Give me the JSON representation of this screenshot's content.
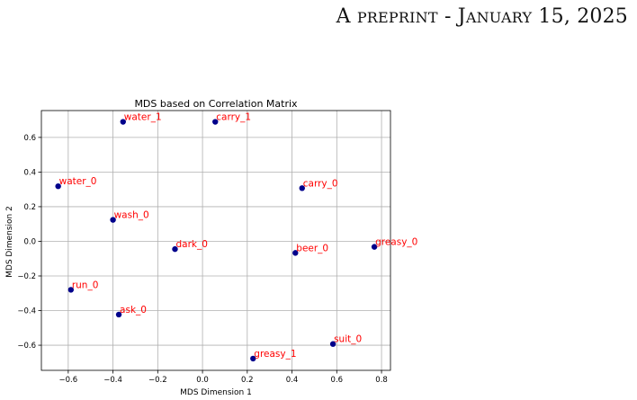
{
  "header": {
    "parts": [
      {
        "text": "A ",
        "cls": "big"
      },
      {
        "text": "PREPRINT",
        "cls": "sc"
      },
      {
        "text": " - ",
        "cls": "big"
      },
      {
        "text": "J",
        "cls": "big"
      },
      {
        "text": "ANUARY",
        "cls": "sc"
      },
      {
        "text": " 15, 2025",
        "cls": "big"
      }
    ]
  },
  "colors": {
    "point": "#00008b",
    "label": "#ff0000",
    "grid": "#b0b0b0",
    "axis": "#000000"
  },
  "chart_data": {
    "type": "scatter",
    "title": "MDS based on Correlation Matrix",
    "xlabel": "MDS Dimension 1",
    "ylabel": "MDS Dimension 2",
    "xlim": [
      -0.72,
      0.84
    ],
    "ylim": [
      -0.745,
      0.755
    ],
    "xticks": [
      -0.6,
      -0.4,
      -0.2,
      0.0,
      0.2,
      0.4,
      0.6,
      0.8
    ],
    "xtick_labels": [
      "−0.6",
      "−0.4",
      "−0.2",
      "0.0",
      "0.2",
      "0.4",
      "0.6",
      "0.8"
    ],
    "yticks": [
      -0.6,
      -0.4,
      -0.2,
      0.0,
      0.2,
      0.4,
      0.6
    ],
    "ytick_labels": [
      "−0.6",
      "−0.4",
      "−0.2",
      "0.0",
      "0.2",
      "0.4",
      "0.6"
    ],
    "grid": true,
    "points": [
      {
        "label": "water_1",
        "x": -0.355,
        "y": 0.69
      },
      {
        "label": "carry_1",
        "x": 0.057,
        "y": 0.69
      },
      {
        "label": "water_0",
        "x": -0.645,
        "y": 0.318
      },
      {
        "label": "carry_0",
        "x": 0.445,
        "y": 0.307
      },
      {
        "label": "wash_0",
        "x": -0.4,
        "y": 0.124
      },
      {
        "label": "dark_0",
        "x": -0.123,
        "y": -0.045
      },
      {
        "label": "beer_0",
        "x": 0.415,
        "y": -0.067
      },
      {
        "label": "greasy_0",
        "x": 0.768,
        "y": -0.032
      },
      {
        "label": "run_0",
        "x": -0.588,
        "y": -0.28
      },
      {
        "label": "ask_0",
        "x": -0.374,
        "y": -0.423
      },
      {
        "label": "suit_0",
        "x": 0.583,
        "y": -0.593
      },
      {
        "label": "greasy_1",
        "x": 0.226,
        "y": -0.677
      }
    ]
  }
}
